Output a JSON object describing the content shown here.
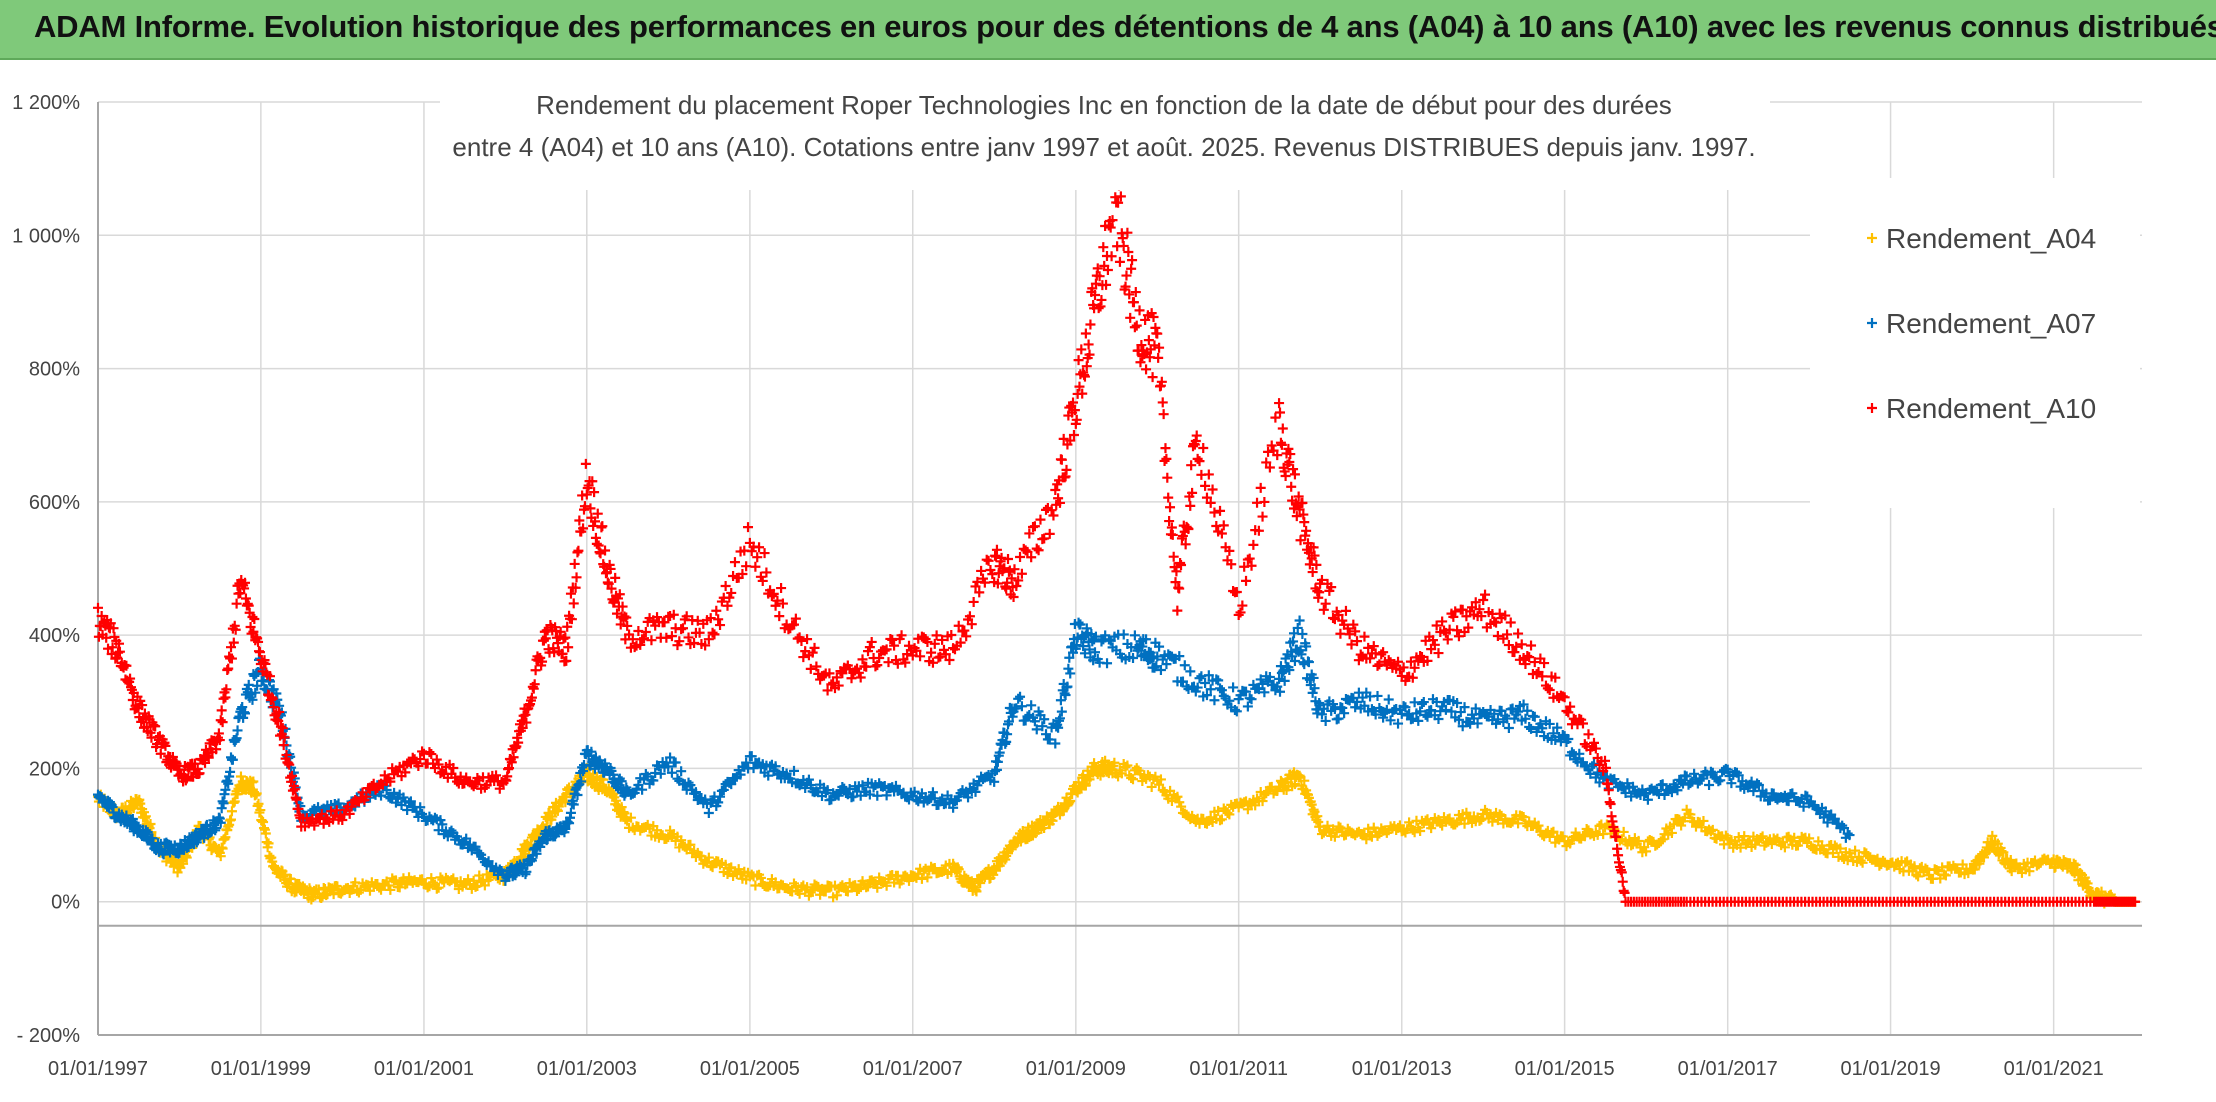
{
  "banner": {
    "title": "ADAM Informe. Evolution historique des performances en euros pour des détentions de 4 ans (A04) à 10 ans (A10) avec les revenus connus distribués"
  },
  "colors": {
    "banner": "#7fc97a",
    "A04": "#ffc000",
    "A07": "#0070c0",
    "A10": "#ff0000",
    "grid": "#d9d9d9"
  },
  "chart_data": {
    "type": "scatter",
    "title_lines": [
      "Rendement du placement Roper Technologies Inc en fonction de la date de début pour des durées",
      "entre 4 (A04) et 10 ans (A10). Cotations entre janv 1997 et août. 2025. Revenus DISTRIBUES depuis janv. 1997."
    ],
    "xlabel": "",
    "ylabel": "",
    "x_ticks": [
      "01/01/1997",
      "01/01/1999",
      "01/01/2001",
      "01/01/2003",
      "01/01/2005",
      "01/01/2007",
      "01/01/2009",
      "01/01/2011",
      "01/01/2013",
      "01/01/2015",
      "01/01/2017",
      "01/01/2019",
      "01/01/2021"
    ],
    "y_ticks": [
      "- 200%",
      "0%",
      "200%",
      "400%",
      "600%",
      "800%",
      "1 000%",
      "1 200%"
    ],
    "y_tick_values": [
      -200,
      0,
      200,
      400,
      600,
      800,
      1000,
      1200
    ],
    "xlim": [
      "1997-01-01",
      "2022-02-01"
    ],
    "ylim": [
      -200,
      1200
    ],
    "marker": "+",
    "legend_position": "right",
    "series": [
      {
        "name": "Rendement_A04",
        "color_key": "A04",
        "points": [
          [
            "1997-01-01",
            155
          ],
          [
            "1997-04-01",
            130
          ],
          [
            "1997-07-01",
            150
          ],
          [
            "1997-10-01",
            80
          ],
          [
            "1998-01-01",
            50
          ],
          [
            "1998-04-01",
            110
          ],
          [
            "1998-07-01",
            70
          ],
          [
            "1998-10-01",
            180
          ],
          [
            "1998-12-01",
            170
          ],
          [
            "1999-03-01",
            50
          ],
          [
            "1999-06-01",
            20
          ],
          [
            "1999-09-01",
            10
          ],
          [
            "2000-01-01",
            20
          ],
          [
            "2000-07-01",
            25
          ],
          [
            "2001-01-01",
            30
          ],
          [
            "2001-07-01",
            25
          ],
          [
            "2002-01-01",
            40
          ],
          [
            "2002-04-01",
            80
          ],
          [
            "2002-07-01",
            120
          ],
          [
            "2002-10-01",
            160
          ],
          [
            "2003-01-01",
            190
          ],
          [
            "2003-04-01",
            170
          ],
          [
            "2003-07-01",
            120
          ],
          [
            "2004-01-01",
            100
          ],
          [
            "2004-07-01",
            60
          ],
          [
            "2005-01-01",
            35
          ],
          [
            "2005-07-01",
            20
          ],
          [
            "2006-01-01",
            15
          ],
          [
            "2006-07-01",
            25
          ],
          [
            "2007-01-01",
            40
          ],
          [
            "2007-07-01",
            50
          ],
          [
            "2007-10-01",
            20
          ],
          [
            "2008-01-01",
            50
          ],
          [
            "2008-04-01",
            90
          ],
          [
            "2008-07-01",
            110
          ],
          [
            "2008-10-01",
            130
          ],
          [
            "2009-01-01",
            170
          ],
          [
            "2009-04-01",
            200
          ],
          [
            "2009-07-01",
            200
          ],
          [
            "2010-01-01",
            180
          ],
          [
            "2010-07-01",
            120
          ],
          [
            "2011-01-01",
            140
          ],
          [
            "2011-07-01",
            170
          ],
          [
            "2011-10-01",
            190
          ],
          [
            "2012-01-01",
            110
          ],
          [
            "2012-07-01",
            100
          ],
          [
            "2013-01-01",
            110
          ],
          [
            "2013-07-01",
            120
          ],
          [
            "2014-01-01",
            130
          ],
          [
            "2014-07-01",
            120
          ],
          [
            "2015-01-01",
            90
          ],
          [
            "2015-07-01",
            110
          ],
          [
            "2016-01-01",
            80
          ],
          [
            "2016-07-01",
            130
          ],
          [
            "2017-01-01",
            90
          ],
          [
            "2017-07-01",
            90
          ],
          [
            "2018-01-01",
            90
          ],
          [
            "2018-07-01",
            70
          ],
          [
            "2019-01-01",
            60
          ],
          [
            "2019-07-01",
            40
          ],
          [
            "2020-01-01",
            50
          ],
          [
            "2020-04-01",
            90
          ],
          [
            "2020-07-01",
            50
          ],
          [
            "2021-01-01",
            60
          ],
          [
            "2021-04-01",
            50
          ],
          [
            "2021-07-01",
            10
          ],
          [
            "2021-10-01",
            0
          ],
          [
            "2022-01-01",
            0
          ]
        ]
      },
      {
        "name": "Rendement_A07",
        "color_key": "A07",
        "points": [
          [
            "1997-01-01",
            160
          ],
          [
            "1997-04-01",
            130
          ],
          [
            "1997-07-01",
            110
          ],
          [
            "1997-10-01",
            80
          ],
          [
            "1998-01-01",
            80
          ],
          [
            "1998-04-01",
            100
          ],
          [
            "1998-07-01",
            120
          ],
          [
            "1998-10-01",
            280
          ],
          [
            "1999-01-01",
            350
          ],
          [
            "1999-04-01",
            280
          ],
          [
            "1999-07-01",
            130
          ],
          [
            "2000-01-01",
            140
          ],
          [
            "2000-07-01",
            170
          ],
          [
            "2001-01-01",
            130
          ],
          [
            "2001-07-01",
            90
          ],
          [
            "2002-01-01",
            40
          ],
          [
            "2002-04-01",
            50
          ],
          [
            "2002-07-01",
            100
          ],
          [
            "2002-10-01",
            110
          ],
          [
            "2003-01-01",
            220
          ],
          [
            "2003-04-01",
            200
          ],
          [
            "2003-07-01",
            160
          ],
          [
            "2004-01-01",
            210
          ],
          [
            "2004-07-01",
            140
          ],
          [
            "2005-01-01",
            210
          ],
          [
            "2005-07-01",
            190
          ],
          [
            "2006-01-01",
            160
          ],
          [
            "2006-07-01",
            170
          ],
          [
            "2007-01-01",
            160
          ],
          [
            "2007-07-01",
            150
          ],
          [
            "2008-01-01",
            190
          ],
          [
            "2008-04-01",
            300
          ],
          [
            "2008-10-01",
            250
          ],
          [
            "2009-01-01",
            400
          ],
          [
            "2009-04-01",
            380
          ],
          [
            "2009-10-01",
            380
          ],
          [
            "2010-01-01",
            370
          ],
          [
            "2010-07-01",
            330
          ],
          [
            "2011-01-01",
            300
          ],
          [
            "2011-07-01",
            330
          ],
          [
            "2011-10-01",
            400
          ],
          [
            "2012-01-01",
            280
          ],
          [
            "2012-07-01",
            300
          ],
          [
            "2013-01-01",
            280
          ],
          [
            "2013-07-01",
            290
          ],
          [
            "2014-01-01",
            270
          ],
          [
            "2014-07-01",
            280
          ],
          [
            "2015-01-01",
            240
          ],
          [
            "2015-07-01",
            180
          ],
          [
            "2016-01-01",
            160
          ],
          [
            "2016-07-01",
            180
          ],
          [
            "2017-01-01",
            190
          ],
          [
            "2017-07-01",
            160
          ],
          [
            "2018-01-01",
            150
          ],
          [
            "2018-07-01",
            100
          ]
        ]
      },
      {
        "name": "Rendement_A10",
        "color_key": "A10",
        "points": [
          [
            "1997-01-01",
            420
          ],
          [
            "1997-04-01",
            380
          ],
          [
            "1997-07-01",
            290
          ],
          [
            "1997-10-01",
            240
          ],
          [
            "1998-01-01",
            190
          ],
          [
            "1998-04-01",
            200
          ],
          [
            "1998-07-01",
            250
          ],
          [
            "1998-10-01",
            480
          ],
          [
            "1999-01-01",
            370
          ],
          [
            "1999-04-01",
            260
          ],
          [
            "1999-07-01",
            120
          ],
          [
            "2000-01-01",
            130
          ],
          [
            "2000-07-01",
            180
          ],
          [
            "2001-01-01",
            220
          ],
          [
            "2001-07-01",
            180
          ],
          [
            "2002-01-01",
            180
          ],
          [
            "2002-04-01",
            280
          ],
          [
            "2002-07-01",
            400
          ],
          [
            "2002-10-01",
            380
          ],
          [
            "2003-01-01",
            640
          ],
          [
            "2003-04-01",
            500
          ],
          [
            "2003-07-01",
            400
          ],
          [
            "2004-01-01",
            410
          ],
          [
            "2004-07-01",
            400
          ],
          [
            "2005-01-01",
            540
          ],
          [
            "2005-07-01",
            420
          ],
          [
            "2006-01-01",
            320
          ],
          [
            "2006-07-01",
            370
          ],
          [
            "2007-01-01",
            380
          ],
          [
            "2007-07-01",
            380
          ],
          [
            "2008-01-01",
            510
          ],
          [
            "2008-04-01",
            480
          ],
          [
            "2008-10-01",
            600
          ],
          [
            "2009-01-01",
            750
          ],
          [
            "2009-04-01",
            900
          ],
          [
            "2009-07-01",
            1040
          ],
          [
            "2009-10-01",
            870
          ],
          [
            "2010-01-01",
            820
          ],
          [
            "2010-04-01",
            460
          ],
          [
            "2010-07-01",
            700
          ],
          [
            "2011-01-01",
            440
          ],
          [
            "2011-07-01",
            720
          ],
          [
            "2011-10-01",
            580
          ],
          [
            "2012-01-01",
            470
          ],
          [
            "2012-07-01",
            380
          ],
          [
            "2013-01-01",
            340
          ],
          [
            "2013-07-01",
            400
          ],
          [
            "2014-01-01",
            440
          ],
          [
            "2014-07-01",
            380
          ],
          [
            "2015-01-01",
            300
          ],
          [
            "2015-07-01",
            200
          ],
          [
            "2015-10-01",
            0
          ],
          [
            "2016-07-01",
            0
          ],
          [
            "2017-07-01",
            0
          ],
          [
            "2018-07-01",
            0
          ],
          [
            "2019-07-01",
            0
          ],
          [
            "2020-07-01",
            0
          ],
          [
            "2021-07-01",
            0
          ],
          [
            "2022-01-01",
            0
          ]
        ]
      }
    ]
  }
}
